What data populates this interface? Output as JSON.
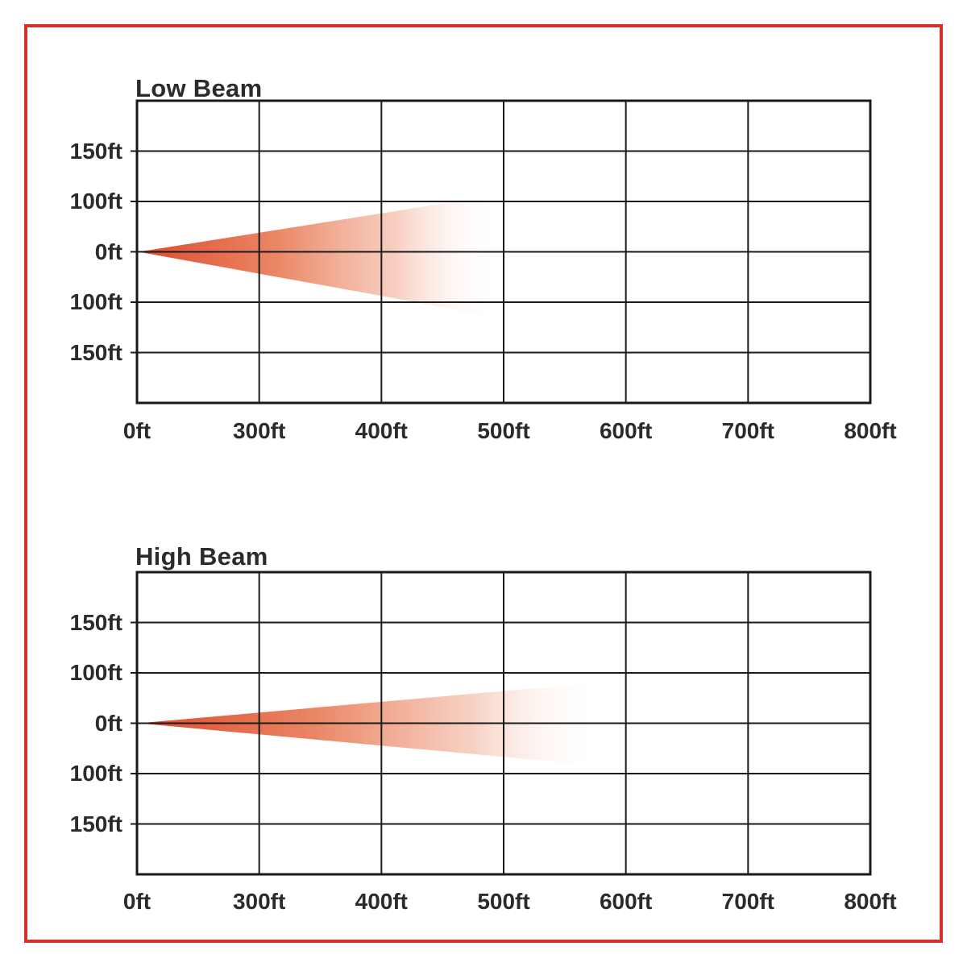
{
  "page": {
    "background": "#ffffff",
    "frame_color": "#d4322f",
    "grid_line_color": "#1a1a1a",
    "text_color": "#2b2b2b"
  },
  "chart_data": [
    {
      "type": "area",
      "title": "Low Beam",
      "x_tick_labels": [
        "0ft",
        "300ft",
        "400ft",
        "500ft",
        "600ft",
        "700ft",
        "800ft"
      ],
      "y_tick_labels": [
        "150ft",
        "100ft",
        "0ft",
        "100ft",
        "150ft"
      ],
      "grid": {
        "cols": 6,
        "rows": 6
      },
      "legend": "none",
      "beam": {
        "description": "low-beam headlight illumination cone, apex at vehicle (0ft), fading with distance",
        "reach_ft": 500,
        "spread_up_ft": 110,
        "spread_down_ft": 125,
        "polygon_norm": [
          [
            0.002,
            0.5
          ],
          [
            0.491,
            0.312
          ],
          [
            0.491,
            0.715
          ]
        ],
        "gradient_stops": [
          {
            "offset": 0,
            "color": "#dc4a2d",
            "opacity": 1
          },
          {
            "offset": 0.38,
            "color": "#e97f5c",
            "opacity": 0.95
          },
          {
            "offset": 0.72,
            "color": "#f5c4b2",
            "opacity": 0.8
          },
          {
            "offset": 1,
            "color": "#ffffff",
            "opacity": 0
          }
        ]
      }
    },
    {
      "type": "area",
      "title": "High Beam",
      "x_tick_labels": [
        "0ft",
        "300ft",
        "400ft",
        "500ft",
        "600ft",
        "700ft",
        "800ft"
      ],
      "y_tick_labels": [
        "150ft",
        "100ft",
        "0ft",
        "100ft",
        "150ft"
      ],
      "grid": {
        "cols": 6,
        "rows": 6
      },
      "legend": "none",
      "beam": {
        "description": "high-beam headlight illumination cone, apex at vehicle (0ft), narrower and longer than low beam",
        "reach_ft": 575,
        "spread_up_ft": 80,
        "spread_down_ft": 85,
        "polygon_norm": [
          [
            0.002,
            0.5
          ],
          [
            0.632,
            0.365
          ],
          [
            0.632,
            0.641
          ]
        ],
        "gradient_stops": [
          {
            "offset": 0,
            "color": "#dc4a2d",
            "opacity": 1
          },
          {
            "offset": 0.38,
            "color": "#e97f5c",
            "opacity": 0.95
          },
          {
            "offset": 0.72,
            "color": "#f5c4b2",
            "opacity": 0.8
          },
          {
            "offset": 1,
            "color": "#ffffff",
            "opacity": 0
          }
        ]
      }
    }
  ]
}
